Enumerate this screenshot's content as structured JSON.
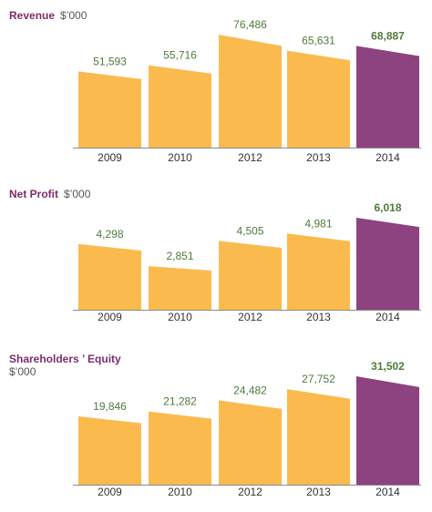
{
  "colors": {
    "normal_bar": "#FBBA4E",
    "highlight_bar": "#8D437F",
    "title": "#7A2D6B",
    "value_label": "#4F7A3A",
    "axis_line": "#8A8A8A"
  },
  "chart_data": [
    {
      "type": "bar",
      "title": "Revenue",
      "unit": "$’000",
      "categories": [
        "2009",
        "2010",
        "2012",
        "2013",
        "2014"
      ],
      "values": [
        51593,
        55716,
        76486,
        65631,
        68887
      ],
      "value_labels": [
        "51,593",
        "55,716",
        "76,486",
        "65,631",
        "68,887"
      ],
      "highlight_index": 4,
      "grid": false
    },
    {
      "type": "bar",
      "title": "Net Profit",
      "unit": "$’000",
      "categories": [
        "2009",
        "2010",
        "2012",
        "2013",
        "2014"
      ],
      "values": [
        4298,
        2851,
        4505,
        4981,
        6018
      ],
      "value_labels": [
        "4,298",
        "2,851",
        "4,505",
        "4,981",
        "6,018"
      ],
      "highlight_index": 4,
      "grid": false
    },
    {
      "type": "bar",
      "title": "Shareholders ’ Equity",
      "unit": "$’000",
      "categories": [
        "2009",
        "2010",
        "2012",
        "2013",
        "2014"
      ],
      "values": [
        19846,
        21282,
        24482,
        27752,
        31502
      ],
      "value_labels": [
        "19,846",
        "21,282",
        "24,482",
        "27,752",
        "31,502"
      ],
      "highlight_index": 4,
      "grid": false
    }
  ]
}
